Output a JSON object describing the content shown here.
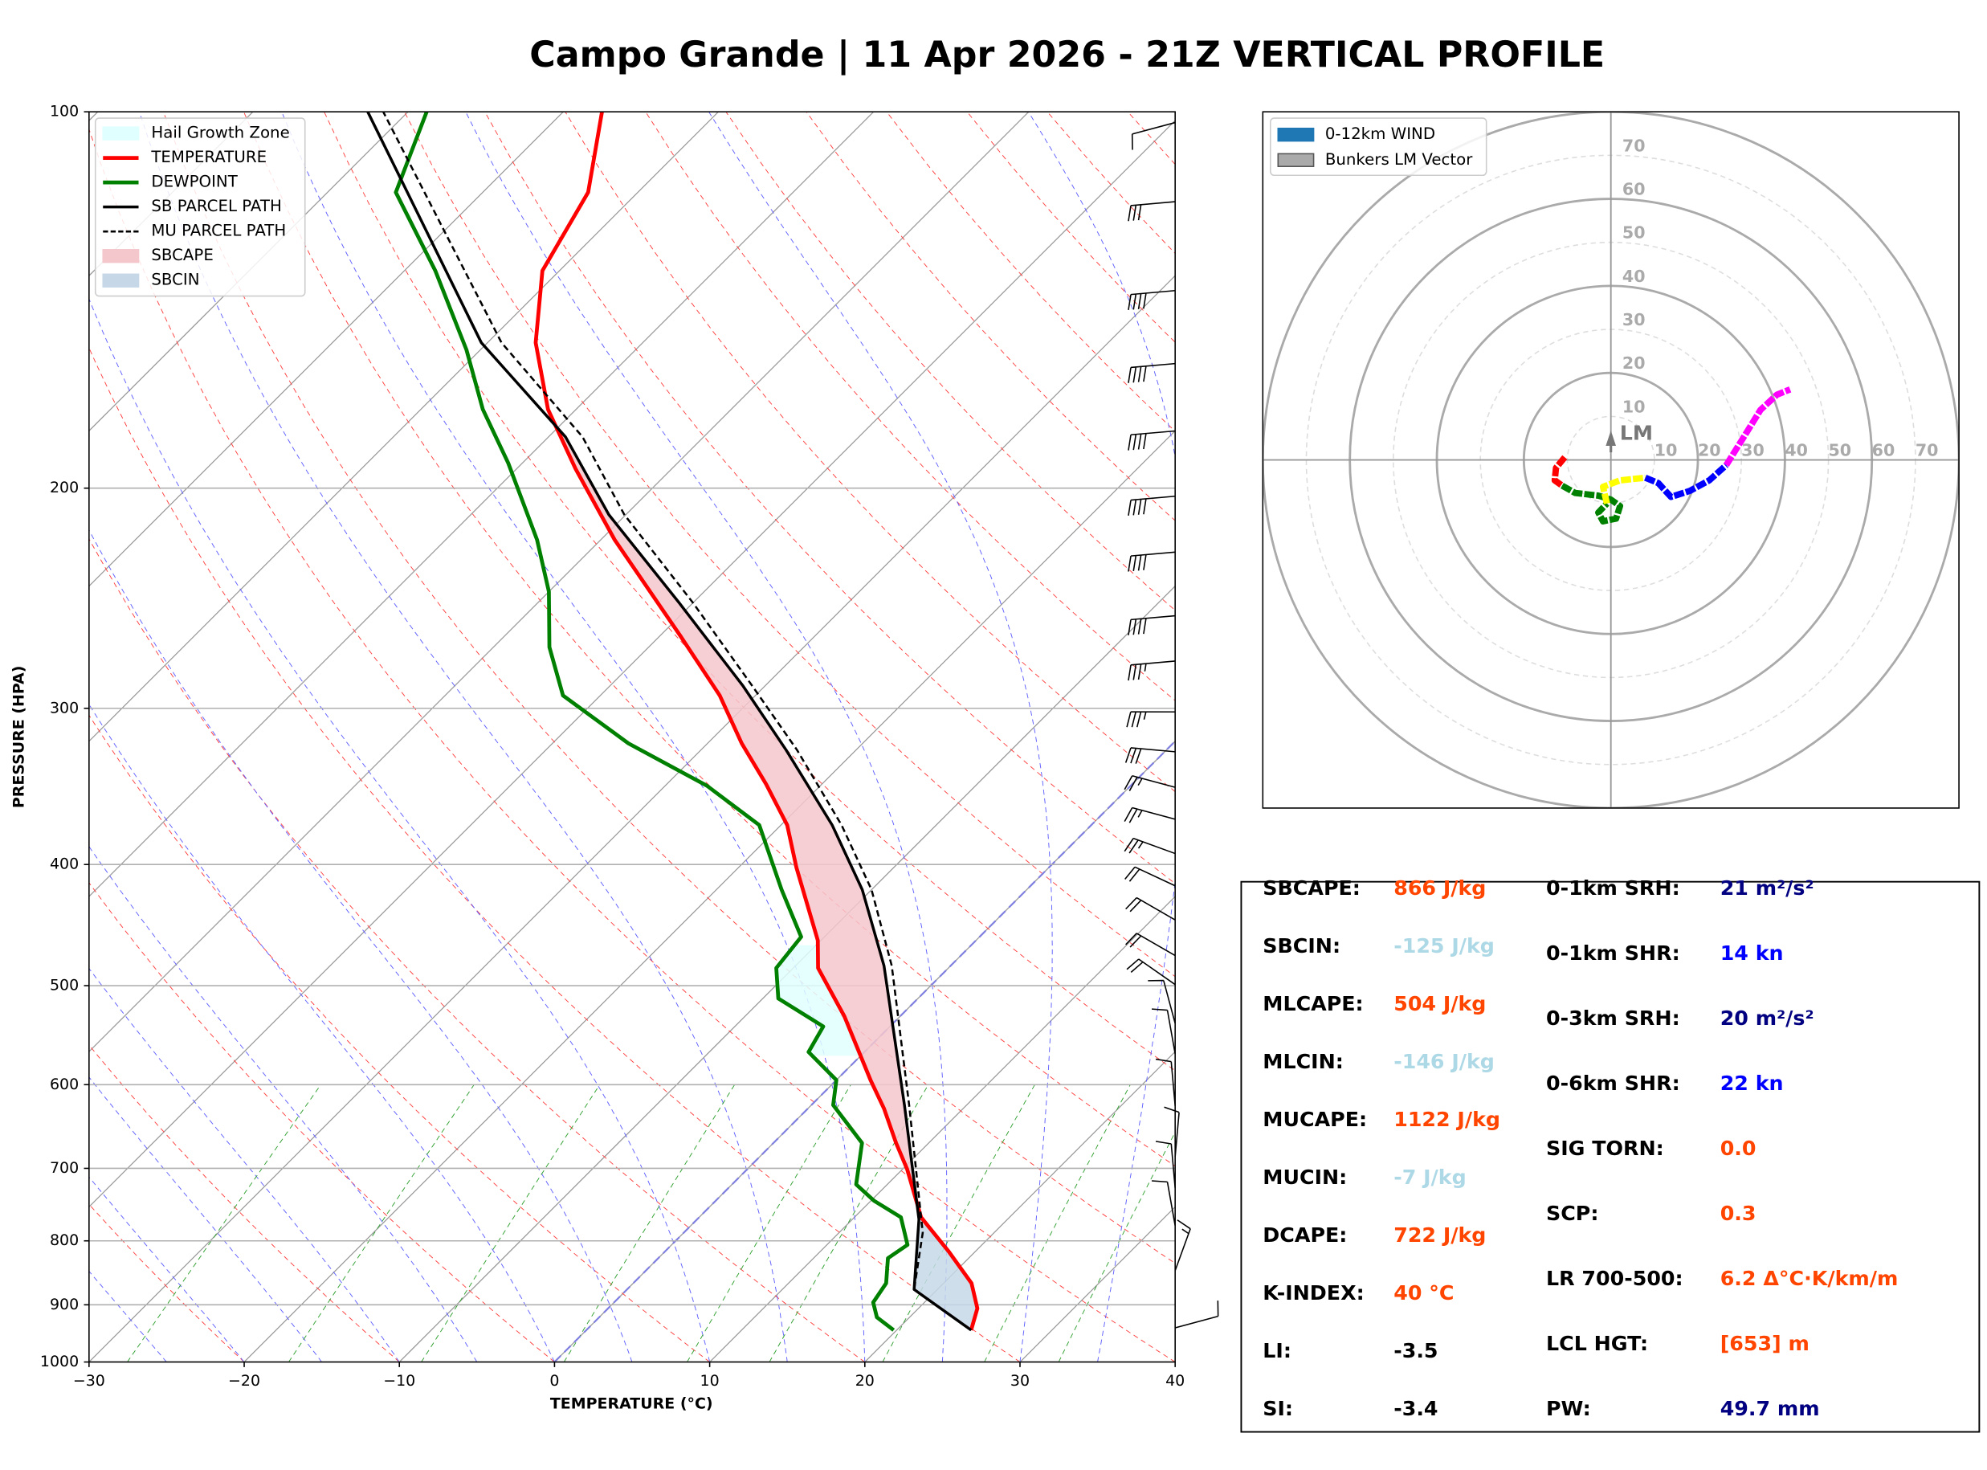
{
  "title": "Campo Grande | 11 Apr 2026 - 21Z VERTICAL PROFILE",
  "chart_data": [
    {
      "type": "skewt",
      "xlabel": "TEMPERATURE (°C)",
      "ylabel": "PRESSURE (HPA)",
      "xlim": [
        -30,
        40
      ],
      "ylim": [
        1000,
        100
      ],
      "log_y": true,
      "grid": true,
      "xticks": [
        {
          "value": -30,
          "label": "−30"
        },
        {
          "value": -20,
          "label": "−20"
        },
        {
          "value": -10,
          "label": "−10"
        },
        0,
        10,
        20,
        30,
        40
      ],
      "yticks": [
        100,
        200,
        300,
        400,
        500,
        600,
        700,
        800,
        900,
        1000
      ],
      "series": [
        {
          "name": "TEMPERATURE",
          "color": "#ff0000",
          "linestyle": "solid",
          "pressure": [
            943,
            906,
            865,
            816,
            766,
            701,
            668,
            627,
            595,
            529,
            484,
            460,
            402,
            372,
            345,
            320,
            293,
            262,
            220,
            193,
            173,
            153,
            134,
            116,
            100
          ],
          "values": [
            24.8,
            23.8,
            21.8,
            18.3,
            14.3,
            10.3,
            7.9,
            4.9,
            2.2,
            -3.6,
            -8.4,
            -10.2,
            -16.3,
            -19.6,
            -23.6,
            -27.8,
            -32.3,
            -38.8,
            -49.1,
            -56.2,
            -61.8,
            -66.9,
            -71.1,
            -73.2,
            -77.5
          ]
        },
        {
          "name": "DEWPOINT",
          "color": "#008000",
          "linestyle": "solid",
          "pressure": [
            943,
            921,
            896,
            865,
            826,
            806,
            766,
            743,
            721,
            668,
            623,
            595,
            565,
            539,
            512,
            484,
            457,
            419,
            372,
            346,
            320,
            293,
            268,
            242,
            220,
            191,
            173,
            155,
            134,
            116,
            100
          ],
          "values": [
            19.8,
            17.9,
            16.7,
            16.3,
            14.8,
            15.2,
            13.0,
            10.2,
            8.0,
            5.7,
            1.4,
            0,
            -3.6,
            -4.3,
            -9.0,
            -11.1,
            -11.5,
            -15.8,
            -21.4,
            -27.3,
            -35.1,
            -42.4,
            -46.4,
            -50.0,
            -54.1,
            -60.9,
            -66.0,
            -70.9,
            -78.0,
            -85.6,
            -88.8
          ]
        },
        {
          "name": "SB PARCEL PATH",
          "color": "#000000",
          "linestyle": "solid",
          "pressure": [
            943,
            875,
            769,
            623,
            482,
            419,
            372,
            324,
            288,
            247,
            210,
            182,
            153,
            100
          ],
          "values": [
            24.8,
            18.5,
            14.3,
            6.0,
            -4.3,
            -10.6,
            -16.7,
            -24.5,
            -31.4,
            -40.9,
            -51.1,
            -58.9,
            -70.4,
            -92.6
          ]
        },
        {
          "name": "MU PARCEL PATH",
          "color": "#000000",
          "linestyle": "dashed",
          "pressure": [
            943,
            875,
            788,
            623,
            482,
            419,
            372,
            324,
            288,
            247,
            210,
            182,
            153,
            100
          ],
          "values": [
            24.8,
            18.5,
            15.4,
            6.3,
            -3.8,
            -10.0,
            -16.1,
            -23.8,
            -30.8,
            -40.0,
            -50.1,
            -57.8,
            -69.1,
            -91.6
          ]
        }
      ],
      "shading": [
        {
          "name": "Hail Growth Zone",
          "color": "#e0ffff"
        },
        {
          "name": "SBCAPE",
          "color": "#f4c7cc"
        },
        {
          "name": "SBCIN",
          "color": "#c6d8e8"
        }
      ],
      "wind": {
        "pressure": [
          102,
          118,
          139,
          159,
          180,
          203,
          225,
          253,
          275,
          302,
          325,
          347,
          368,
          392,
          416,
          443,
          473,
          499,
          536,
          567,
          624,
          685,
          726,
          778,
          845,
          939
        ],
        "speed": [
          10,
          30,
          40,
          40,
          40,
          40,
          40,
          40,
          35,
          35,
          30,
          25,
          25,
          25,
          20,
          20,
          20,
          20,
          10,
          10,
          10,
          10,
          10,
          10,
          15,
          10
        ],
        "direction": [
          255,
          265,
          265,
          265,
          265,
          265,
          265,
          265,
          265,
          270,
          275,
          285,
          285,
          290,
          295,
          300,
          300,
          305,
          345,
          350,
          355,
          5,
          355,
          350,
          20,
          75
        ]
      }
    },
    {
      "type": "hodograph",
      "xlim": [
        -80,
        80
      ],
      "ylim": [
        -80,
        80
      ],
      "rings": [
        10,
        20,
        30,
        40,
        50,
        60,
        70
      ],
      "legend": [
        {
          "name": "0-12km WIND",
          "color": "#1f77b4"
        },
        {
          "name": "Bunkers LM Vector",
          "color": "#aaaaaa"
        }
      ],
      "lm": {
        "u": 0,
        "v": 5,
        "label": "LM"
      },
      "series": [
        {
          "color": "#ff0000",
          "u": [
            -10.6,
            -12.6,
            -12.9,
            -11.2
          ],
          "v": [
            0.6,
            -1.8,
            -4.7,
            -5.9
          ]
        },
        {
          "color": "#008000",
          "u": [
            -11.2,
            -8.2,
            -2.9,
            0,
            2.1,
            1.2,
            -1.8,
            -2.9,
            -0.9
          ],
          "v": [
            -5.9,
            -7.6,
            -8.2,
            -9.1,
            -10.6,
            -13.5,
            -14.1,
            -12.1,
            -10.0
          ]
        },
        {
          "color": "#ffff00",
          "u": [
            -0.9,
            -1.8,
            2.1,
            7.9
          ],
          "v": [
            -10.0,
            -6.2,
            -4.7,
            -4.1
          ]
        },
        {
          "color": "#0000ff",
          "u": [
            7.9,
            10.9,
            13.8,
            18.2,
            22.6,
            26.5
          ],
          "v": [
            -4.1,
            -5.3,
            -8.5,
            -7.1,
            -4.7,
            -1.2
          ]
        },
        {
          "color": "#ff00ff",
          "u": [
            26.5,
            30,
            34.4,
            38.2,
            41.2
          ],
          "v": [
            -1.2,
            4.4,
            11.5,
            15,
            16.2
          ]
        }
      ]
    }
  ],
  "indices": {
    "left": [
      {
        "label": "SBCAPE:",
        "value": "866 J/kg",
        "color": "#ff4500"
      },
      {
        "label": "SBCIN:",
        "value": "-125 J/kg",
        "color": "#add8e6"
      },
      {
        "label": "MLCAPE:",
        "value": "504 J/kg",
        "color": "#ff4500"
      },
      {
        "label": "MLCIN:",
        "value": "-146 J/kg",
        "color": "#add8e6"
      },
      {
        "label": "MUCAPE:",
        "value": "1122 J/kg",
        "color": "#ff4500"
      },
      {
        "label": "MUCIN:",
        "value": "-7 J/kg",
        "color": "#add8e6"
      },
      {
        "label": "DCAPE:",
        "value": "722 J/kg",
        "color": "#ff4500"
      },
      {
        "label": "K-INDEX:",
        "value": "40 °C",
        "color": "#ff4500"
      },
      {
        "label": "LI:",
        "value": "-3.5",
        "color": "#000000"
      },
      {
        "label": "SI:",
        "value": "-3.4",
        "color": "#000000"
      }
    ],
    "right": [
      {
        "label": "0-1km SRH:",
        "value": "21 m²/s²",
        "color": "#000080"
      },
      {
        "label": "0-1km SHR:",
        "value": "14 kn",
        "color": "#0000ff"
      },
      {
        "label": "0-3km SRH:",
        "value": "20 m²/s²",
        "color": "#000080"
      },
      {
        "label": "0-6km SHR:",
        "value": "22 kn",
        "color": "#0000ff"
      },
      {
        "label": "SIG TORN:",
        "value": "0.0",
        "color": "#ff4500"
      },
      {
        "label": "SCP:",
        "value": "0.3",
        "color": "#ff4500"
      },
      {
        "label": "LR 700-500:",
        "value": "6.2 Δ°C·K/km/m",
        "color": "#ff4500"
      },
      {
        "label": "LCL HGT:",
        "value": "[653] m",
        "color": "#ff4500"
      },
      {
        "label": "PW:",
        "value": "49.7 mm",
        "color": "#000080"
      }
    ]
  }
}
